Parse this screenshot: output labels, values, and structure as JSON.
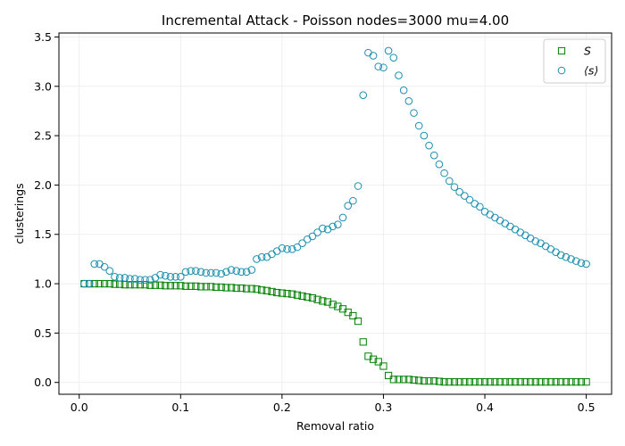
{
  "chart_data": {
    "type": "scatter",
    "title": "Incremental Attack - Poisson nodes=3000 mu=4.00",
    "xlabel": "Removal ratio",
    "ylabel": "clusterings",
    "xlim": [
      -0.02,
      0.525
    ],
    "ylim": [
      -0.12,
      3.54
    ],
    "xticks": [
      "0.0",
      "0.1",
      "0.2",
      "0.3",
      "0.4",
      "0.5"
    ],
    "yticks": [
      "0.0",
      "0.5",
      "1.0",
      "1.5",
      "2.0",
      "2.5",
      "3.0",
      "3.5"
    ],
    "grid": true,
    "legend_position": "top-right",
    "series": [
      {
        "name": "S",
        "marker": "square",
        "color": "#008000",
        "points": [
          [
            0.005,
            1.0
          ],
          [
            0.01,
            1.0
          ],
          [
            0.015,
            1.0
          ],
          [
            0.02,
            1.0
          ],
          [
            0.025,
            1.0
          ],
          [
            0.03,
            1.0
          ],
          [
            0.035,
            0.995
          ],
          [
            0.04,
            0.995
          ],
          [
            0.045,
            0.99
          ],
          [
            0.05,
            0.99
          ],
          [
            0.055,
            0.99
          ],
          [
            0.06,
            0.99
          ],
          [
            0.065,
            0.99
          ],
          [
            0.07,
            0.985
          ],
          [
            0.075,
            0.985
          ],
          [
            0.08,
            0.985
          ],
          [
            0.085,
            0.98
          ],
          [
            0.09,
            0.98
          ],
          [
            0.095,
            0.98
          ],
          [
            0.1,
            0.98
          ],
          [
            0.105,
            0.975
          ],
          [
            0.11,
            0.975
          ],
          [
            0.115,
            0.975
          ],
          [
            0.12,
            0.97
          ],
          [
            0.125,
            0.97
          ],
          [
            0.13,
            0.97
          ],
          [
            0.135,
            0.965
          ],
          [
            0.14,
            0.965
          ],
          [
            0.145,
            0.96
          ],
          [
            0.15,
            0.96
          ],
          [
            0.155,
            0.955
          ],
          [
            0.16,
            0.955
          ],
          [
            0.165,
            0.95
          ],
          [
            0.17,
            0.95
          ],
          [
            0.175,
            0.945
          ],
          [
            0.18,
            0.935
          ],
          [
            0.185,
            0.93
          ],
          [
            0.19,
            0.92
          ],
          [
            0.195,
            0.91
          ],
          [
            0.2,
            0.905
          ],
          [
            0.205,
            0.9
          ],
          [
            0.21,
            0.895
          ],
          [
            0.215,
            0.885
          ],
          [
            0.22,
            0.875
          ],
          [
            0.225,
            0.865
          ],
          [
            0.23,
            0.855
          ],
          [
            0.235,
            0.84
          ],
          [
            0.24,
            0.825
          ],
          [
            0.245,
            0.815
          ],
          [
            0.25,
            0.79
          ],
          [
            0.255,
            0.77
          ],
          [
            0.26,
            0.745
          ],
          [
            0.265,
            0.71
          ],
          [
            0.27,
            0.675
          ],
          [
            0.275,
            0.62
          ],
          [
            0.28,
            0.41
          ],
          [
            0.285,
            0.265
          ],
          [
            0.29,
            0.235
          ],
          [
            0.295,
            0.21
          ],
          [
            0.3,
            0.165
          ],
          [
            0.305,
            0.07
          ],
          [
            0.31,
            0.03
          ],
          [
            0.315,
            0.03
          ],
          [
            0.32,
            0.03
          ],
          [
            0.325,
            0.03
          ],
          [
            0.33,
            0.025
          ],
          [
            0.335,
            0.02
          ],
          [
            0.34,
            0.015
          ],
          [
            0.345,
            0.015
          ],
          [
            0.35,
            0.015
          ],
          [
            0.355,
            0.01
          ],
          [
            0.36,
            0.005
          ],
          [
            0.365,
            0.005
          ],
          [
            0.37,
            0.005
          ],
          [
            0.375,
            0.005
          ],
          [
            0.38,
            0.005
          ],
          [
            0.385,
            0.005
          ],
          [
            0.39,
            0.005
          ],
          [
            0.395,
            0.005
          ],
          [
            0.4,
            0.005
          ],
          [
            0.405,
            0.005
          ],
          [
            0.41,
            0.005
          ],
          [
            0.415,
            0.005
          ],
          [
            0.42,
            0.005
          ],
          [
            0.425,
            0.005
          ],
          [
            0.43,
            0.005
          ],
          [
            0.435,
            0.005
          ],
          [
            0.44,
            0.005
          ],
          [
            0.445,
            0.005
          ],
          [
            0.45,
            0.005
          ],
          [
            0.455,
            0.005
          ],
          [
            0.46,
            0.005
          ],
          [
            0.465,
            0.005
          ],
          [
            0.47,
            0.005
          ],
          [
            0.475,
            0.005
          ],
          [
            0.48,
            0.005
          ],
          [
            0.485,
            0.005
          ],
          [
            0.49,
            0.005
          ],
          [
            0.495,
            0.005
          ],
          [
            0.5,
            0.005
          ]
        ]
      },
      {
        "name": "⟨s⟩",
        "marker": "circle",
        "color": "#1a8fb0",
        "points": [
          [
            0.005,
            1.0
          ],
          [
            0.01,
            1.0
          ],
          [
            0.015,
            1.2
          ],
          [
            0.02,
            1.2
          ],
          [
            0.025,
            1.17
          ],
          [
            0.03,
            1.13
          ],
          [
            0.035,
            1.07
          ],
          [
            0.04,
            1.06
          ],
          [
            0.045,
            1.06
          ],
          [
            0.05,
            1.05
          ],
          [
            0.055,
            1.05
          ],
          [
            0.06,
            1.04
          ],
          [
            0.065,
            1.04
          ],
          [
            0.07,
            1.04
          ],
          [
            0.075,
            1.06
          ],
          [
            0.08,
            1.09
          ],
          [
            0.085,
            1.08
          ],
          [
            0.09,
            1.07
          ],
          [
            0.095,
            1.07
          ],
          [
            0.1,
            1.07
          ],
          [
            0.105,
            1.12
          ],
          [
            0.11,
            1.13
          ],
          [
            0.115,
            1.13
          ],
          [
            0.12,
            1.12
          ],
          [
            0.125,
            1.11
          ],
          [
            0.13,
            1.11
          ],
          [
            0.135,
            1.11
          ],
          [
            0.14,
            1.1
          ],
          [
            0.145,
            1.12
          ],
          [
            0.15,
            1.14
          ],
          [
            0.155,
            1.13
          ],
          [
            0.16,
            1.12
          ],
          [
            0.165,
            1.12
          ],
          [
            0.17,
            1.14
          ],
          [
            0.175,
            1.25
          ],
          [
            0.18,
            1.27
          ],
          [
            0.185,
            1.27
          ],
          [
            0.19,
            1.3
          ],
          [
            0.195,
            1.33
          ],
          [
            0.2,
            1.36
          ],
          [
            0.205,
            1.35
          ],
          [
            0.21,
            1.35
          ],
          [
            0.215,
            1.37
          ],
          [
            0.22,
            1.41
          ],
          [
            0.225,
            1.45
          ],
          [
            0.23,
            1.48
          ],
          [
            0.235,
            1.52
          ],
          [
            0.24,
            1.56
          ],
          [
            0.245,
            1.55
          ],
          [
            0.25,
            1.58
          ],
          [
            0.255,
            1.6
          ],
          [
            0.26,
            1.67
          ],
          [
            0.265,
            1.79
          ],
          [
            0.27,
            1.84
          ],
          [
            0.275,
            1.99
          ],
          [
            0.28,
            2.91
          ],
          [
            0.285,
            3.34
          ],
          [
            0.29,
            3.31
          ],
          [
            0.295,
            3.2
          ],
          [
            0.3,
            3.19
          ],
          [
            0.305,
            3.36
          ],
          [
            0.31,
            3.29
          ],
          [
            0.315,
            3.11
          ],
          [
            0.32,
            2.96
          ],
          [
            0.325,
            2.85
          ],
          [
            0.33,
            2.73
          ],
          [
            0.335,
            2.6
          ],
          [
            0.34,
            2.5
          ],
          [
            0.345,
            2.4
          ],
          [
            0.35,
            2.3
          ],
          [
            0.355,
            2.21
          ],
          [
            0.36,
            2.12
          ],
          [
            0.365,
            2.04
          ],
          [
            0.37,
            1.98
          ],
          [
            0.375,
            1.93
          ],
          [
            0.38,
            1.89
          ],
          [
            0.385,
            1.85
          ],
          [
            0.39,
            1.81
          ],
          [
            0.395,
            1.78
          ],
          [
            0.4,
            1.73
          ],
          [
            0.405,
            1.7
          ],
          [
            0.41,
            1.67
          ],
          [
            0.415,
            1.64
          ],
          [
            0.42,
            1.61
          ],
          [
            0.425,
            1.58
          ],
          [
            0.43,
            1.55
          ],
          [
            0.435,
            1.52
          ],
          [
            0.44,
            1.49
          ],
          [
            0.445,
            1.46
          ],
          [
            0.45,
            1.43
          ],
          [
            0.455,
            1.41
          ],
          [
            0.46,
            1.38
          ],
          [
            0.465,
            1.35
          ],
          [
            0.47,
            1.32
          ],
          [
            0.475,
            1.29
          ],
          [
            0.48,
            1.27
          ],
          [
            0.485,
            1.25
          ],
          [
            0.49,
            1.23
          ],
          [
            0.495,
            1.21
          ],
          [
            0.5,
            1.2
          ]
        ]
      }
    ]
  }
}
